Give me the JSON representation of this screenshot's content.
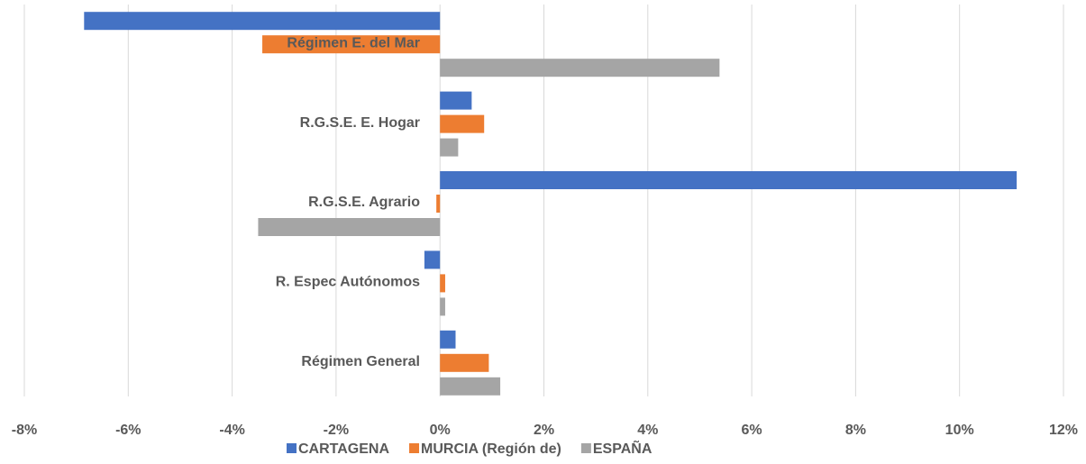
{
  "chart_data": {
    "type": "hbar",
    "categories": [
      "Régimen E. del Mar",
      "R.G.S.E. E. Hogar",
      "R.G.S.E. Agrario",
      "R. Espec  Autónomos",
      "Régimen General"
    ],
    "series": [
      {
        "name": "CARTAGENA",
        "color": "#4472c4",
        "values": [
          -6.85,
          0.61,
          11.1,
          -0.3,
          0.3
        ]
      },
      {
        "name": "MURCIA (Región de)",
        "color": "#ed7d31",
        "values": [
          -3.42,
          0.85,
          -0.07,
          0.1,
          0.94
        ]
      },
      {
        "name": "ESPAÑA",
        "color": "#a5a5a5",
        "values": [
          5.38,
          0.35,
          -3.5,
          0.1,
          1.16
        ]
      }
    ],
    "xlim": [
      -8,
      12
    ],
    "xticks": [
      {
        "value": -8,
        "label": "-8%"
      },
      {
        "value": -6,
        "label": "-6%"
      },
      {
        "value": -4,
        "label": "-4%"
      },
      {
        "value": -2,
        "label": "-2%"
      },
      {
        "value": 0,
        "label": "0%"
      },
      {
        "value": 2,
        "label": "2%"
      },
      {
        "value": 4,
        "label": "4%"
      },
      {
        "value": 6,
        "label": "6%"
      },
      {
        "value": 8,
        "label": "8%"
      },
      {
        "value": 10,
        "label": "10%"
      },
      {
        "value": 12,
        "label": "12%"
      }
    ],
    "grid": true,
    "legend": "bottom"
  }
}
